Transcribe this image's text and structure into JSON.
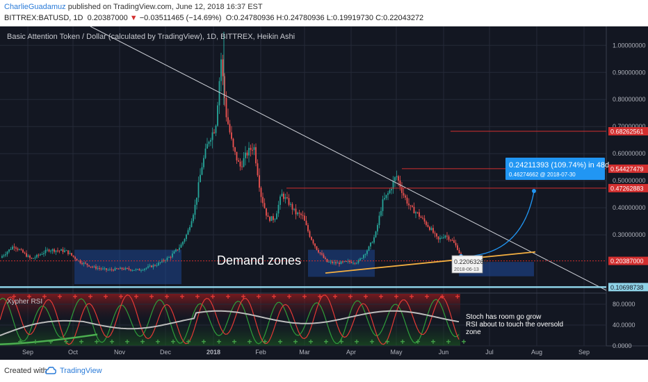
{
  "header": {
    "author": "CharlieGuadamuz",
    "published_text": "published on TradingView.com, June 12, 2018 16:37 EST",
    "symbol": "BITTREX:BATUSD, 1D",
    "last": "0.20387000",
    "change": "−0.03511465 (−14.69%)",
    "open": "O:0.24780936",
    "high": "H:0.24780936",
    "low": "L:0.19919730",
    "close": "C:0.22043272"
  },
  "footer": {
    "created_with": "Created with",
    "brand": "TradingView"
  },
  "colors": {
    "background": "#131722",
    "up": "#26a69a",
    "down": "#ef5350",
    "grid": "#242a38",
    "text": "#b2b5be",
    "resistance": "#d32f2f",
    "support_line": "#f5b041",
    "zone": "#1f4fa8",
    "baseline": "#8fd3e8",
    "arrow": "#2196f3"
  },
  "chart_data": [
    {
      "type": "candlestick",
      "title": "Basic Attention Token / Dollar (calculated by TradingView), 1D, BITTREX, Heikin Ashi",
      "x_labels": [
        "Sep",
        "Oct",
        "Nov",
        "Dec",
        "2018",
        "Feb",
        "Mar",
        "Apr",
        "May",
        "Jun",
        "Jul",
        "Aug",
        "Sep"
      ],
      "y_ticks": [
        "1.00000000",
        "0.90000000",
        "0.80000000",
        "0.70000000",
        "0.60000000",
        "0.50000000",
        "0.40000000",
        "0.30000000"
      ],
      "ylim": [
        0.09,
        1.07
      ],
      "close_path": [
        [
          0,
          0.215
        ],
        [
          20,
          0.26
        ],
        [
          45,
          0.21
        ],
        [
          70,
          0.245
        ],
        [
          95,
          0.24
        ],
        [
          115,
          0.2
        ],
        [
          135,
          0.18
        ],
        [
          155,
          0.17
        ],
        [
          175,
          0.175
        ],
        [
          200,
          0.17
        ],
        [
          225,
          0.19
        ],
        [
          245,
          0.22
        ],
        [
          260,
          0.26
        ],
        [
          270,
          0.31
        ],
        [
          280,
          0.4
        ],
        [
          290,
          0.55
        ],
        [
          300,
          0.65
        ],
        [
          310,
          0.7
        ],
        [
          318,
          0.95
        ],
        [
          325,
          0.75
        ],
        [
          335,
          0.62
        ],
        [
          345,
          0.55
        ],
        [
          355,
          0.6
        ],
        [
          365,
          0.63
        ],
        [
          375,
          0.45
        ],
        [
          385,
          0.36
        ],
        [
          395,
          0.36
        ],
        [
          405,
          0.45
        ],
        [
          415,
          0.42
        ],
        [
          425,
          0.38
        ],
        [
          435,
          0.37
        ],
        [
          445,
          0.3
        ],
        [
          455,
          0.25
        ],
        [
          470,
          0.2
        ],
        [
          485,
          0.195
        ],
        [
          500,
          0.2
        ],
        [
          515,
          0.2
        ],
        [
          530,
          0.25
        ],
        [
          540,
          0.3
        ],
        [
          550,
          0.42
        ],
        [
          560,
          0.46
        ],
        [
          570,
          0.52
        ],
        [
          580,
          0.45
        ],
        [
          590,
          0.4
        ],
        [
          600,
          0.38
        ],
        [
          610,
          0.35
        ],
        [
          620,
          0.32
        ],
        [
          630,
          0.28
        ],
        [
          640,
          0.3
        ],
        [
          650,
          0.28
        ],
        [
          658,
          0.25
        ],
        [
          663,
          0.22
        ]
      ],
      "resistance_levels": [
        {
          "value": 0.68262561,
          "label": "0.68262561"
        },
        {
          "value": 0.54427479,
          "label": "0.54427479"
        },
        {
          "value": 0.47262883,
          "label": "0.47262883"
        }
      ],
      "current_price": {
        "value": 0.20387,
        "label": "0.20387000"
      },
      "support_level": {
        "value": 0.10698738,
        "label": "0.10698738"
      },
      "annotations": {
        "demand_zones": "Demand zones",
        "price_marker": "0.22063269",
        "price_marker_date": "2018-06-13",
        "projection_line1": "0.24211393 (109.74%) in 48d",
        "projection_line2": "0.46274662  @ 2018-07-30"
      }
    },
    {
      "type": "line",
      "title": "Xypher RSI",
      "y_ticks": [
        "80.0000",
        "40.0000",
        "0.0000"
      ],
      "ylim": [
        0,
        100
      ],
      "annotation": [
        "Stoch has room go grow",
        "RSI about to touch the oversold",
        "zone"
      ]
    }
  ]
}
